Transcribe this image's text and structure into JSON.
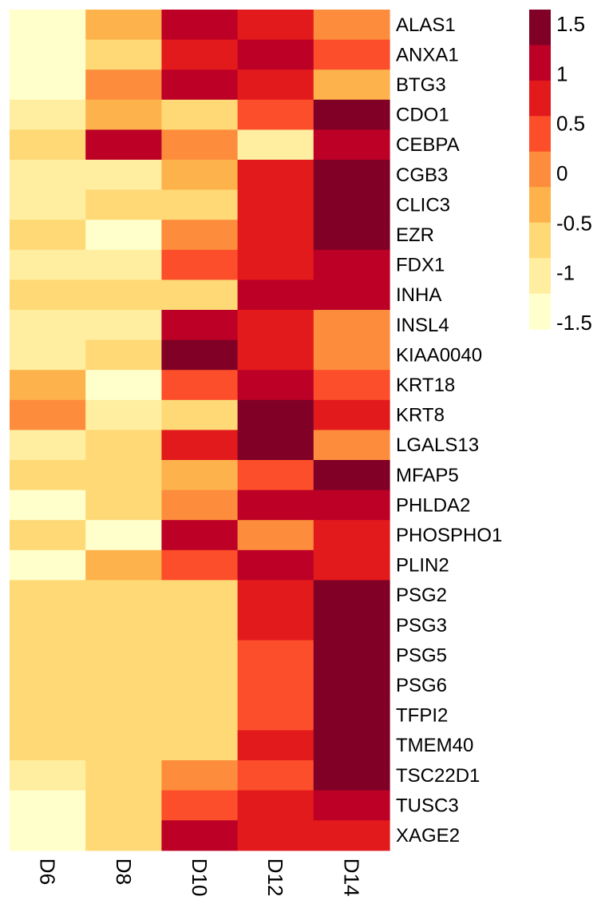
{
  "chart_data": {
    "type": "heatmap",
    "title": "",
    "xlabel": "",
    "ylabel": "",
    "columns": [
      "D6",
      "D8",
      "D10",
      "D12",
      "D14"
    ],
    "rows": [
      "ALAS1",
      "ANXA1",
      "BTG3",
      "CDO1",
      "CEBPA",
      "CGB3",
      "CLIC3",
      "EZR",
      "FDX1",
      "INHA",
      "INSL4",
      "KIAA0040",
      "KRT18",
      "KRT8",
      "LGALS13",
      "MFAP5",
      "PHLDA2",
      "PHOSPHO1",
      "PLIN2",
      "PSG2",
      "PSG3",
      "PSG5",
      "PSG6",
      "TFPI2",
      "TMEM40",
      "TSC22D1",
      "TUSC3",
      "XAGE2"
    ],
    "values": [
      [
        -1.5,
        -0.5,
        1.0,
        0.75,
        0.0
      ],
      [
        -1.5,
        -0.75,
        0.75,
        1.0,
        0.5
      ],
      [
        -1.5,
        0.0,
        1.0,
        0.75,
        -0.5
      ],
      [
        -1.0,
        -0.5,
        -0.75,
        0.5,
        1.5
      ],
      [
        -0.75,
        1.0,
        0.0,
        -1.25,
        1.0
      ],
      [
        -1.0,
        -1.0,
        -0.5,
        0.75,
        1.5
      ],
      [
        -1.0,
        -0.75,
        -0.75,
        0.75,
        1.5
      ],
      [
        -0.75,
        -1.5,
        0.0,
        0.75,
        1.5
      ],
      [
        -1.0,
        -1.0,
        0.5,
        0.75,
        1.0
      ],
      [
        -0.75,
        -0.75,
        -0.75,
        1.0,
        1.0
      ],
      [
        -1.0,
        -1.0,
        1.0,
        0.75,
        0.0
      ],
      [
        -1.0,
        -0.75,
        1.5,
        0.75,
        0.0
      ],
      [
        -0.5,
        -1.5,
        0.5,
        1.0,
        0.5
      ],
      [
        0.0,
        -1.0,
        -0.75,
        1.5,
        0.75
      ],
      [
        -1.0,
        -0.75,
        0.75,
        1.5,
        0.0
      ],
      [
        -0.75,
        -0.75,
        -0.5,
        0.5,
        1.5
      ],
      [
        -1.5,
        -0.75,
        0.0,
        1.0,
        1.0
      ],
      [
        -0.75,
        -1.5,
        1.0,
        0.0,
        0.75
      ],
      [
        -1.5,
        -0.5,
        0.5,
        1.0,
        0.75
      ],
      [
        -0.75,
        -0.75,
        -0.75,
        0.75,
        1.5
      ],
      [
        -0.75,
        -0.75,
        -0.75,
        0.75,
        1.5
      ],
      [
        -0.75,
        -0.75,
        -0.75,
        0.5,
        1.5
      ],
      [
        -0.75,
        -0.75,
        -0.75,
        0.5,
        1.5
      ],
      [
        -0.75,
        -0.75,
        -0.75,
        0.5,
        1.5
      ],
      [
        -0.75,
        -0.75,
        -0.75,
        0.75,
        1.5
      ],
      [
        -1.0,
        -0.75,
        0.0,
        0.5,
        1.5
      ],
      [
        -1.5,
        -0.75,
        0.5,
        0.75,
        1.0
      ],
      [
        -1.5,
        -0.75,
        1.0,
        0.75,
        0.75
      ]
    ],
    "color_scale": {
      "min": -1.5,
      "max": 1.5,
      "colors": [
        "#ffffcc",
        "#ffeda0",
        "#fed976",
        "#feb24c",
        "#fd8d3c",
        "#fc4e2a",
        "#e31a1c",
        "#bd0026",
        "#800026"
      ]
    },
    "legend": {
      "position": "top-right",
      "ticks": [
        "1.5",
        "1",
        "0.5",
        "0",
        "-0.5",
        "-1",
        "-1.5"
      ]
    }
  }
}
